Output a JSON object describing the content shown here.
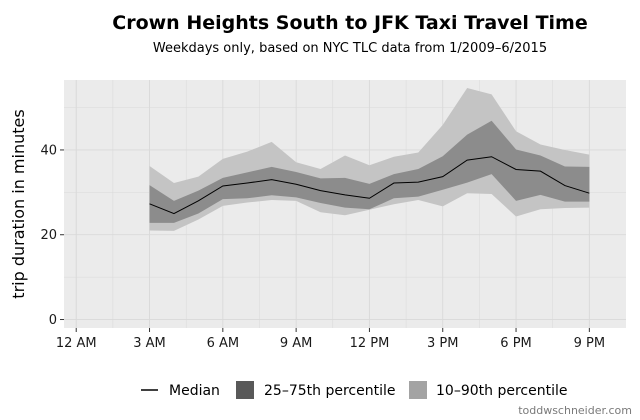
{
  "chart_data": {
    "type": "area",
    "title": "Crown Heights South to JFK Taxi Travel Time",
    "subtitle": "Weekdays only, based on NYC TLC data from 1/2009–6/2015",
    "xlabel": "",
    "ylabel": "trip duration in minutes",
    "x_tick_labels": [
      "12 AM",
      "3 AM",
      "6 AM",
      "9 AM",
      "12 PM",
      "3 PM",
      "6 PM",
      "9 PM"
    ],
    "x_tick_hours": [
      0,
      3,
      6,
      9,
      12,
      15,
      18,
      21
    ],
    "xlim": [
      -0.5,
      22.5
    ],
    "y_ticks": [
      0,
      20,
      40
    ],
    "ylim": [
      -2,
      56.5
    ],
    "grid": true,
    "legend_position": "bottom",
    "x": [
      3,
      4,
      5,
      6,
      7,
      8,
      9,
      10,
      11,
      12,
      13,
      14,
      15,
      16,
      17,
      18,
      19,
      20,
      21
    ],
    "series": [
      {
        "name": "Median",
        "kind": "line",
        "values": [
          27.3,
          25.0,
          28.0,
          31.5,
          32.2,
          33.0,
          31.9,
          30.4,
          29.4,
          28.6,
          32.2,
          32.4,
          33.7,
          37.6,
          38.4,
          35.4,
          35.0,
          31.6,
          29.8
        ]
      },
      {
        "name": "25–75th percentile",
        "kind": "band",
        "lower": [
          22.8,
          22.8,
          25.0,
          28.4,
          28.6,
          29.3,
          28.8,
          27.5,
          26.4,
          26.0,
          28.6,
          29.0,
          30.6,
          32.3,
          34.3,
          28.0,
          29.4,
          27.8,
          27.8
        ],
        "upper": [
          31.7,
          28.0,
          30.4,
          33.4,
          34.7,
          36.0,
          34.8,
          33.3,
          33.4,
          32.0,
          34.3,
          35.5,
          38.5,
          43.6,
          46.9,
          40.1,
          38.7,
          36.1,
          36.0
        ]
      },
      {
        "name": "10–90th percentile",
        "kind": "band",
        "lower": [
          21.0,
          20.9,
          23.6,
          26.8,
          27.6,
          28.2,
          28.0,
          25.3,
          24.6,
          25.9,
          27.2,
          28.2,
          26.7,
          29.8,
          29.6,
          24.3,
          26.0,
          26.3,
          26.4
        ],
        "upper": [
          36.2,
          32.2,
          33.7,
          37.9,
          39.6,
          41.9,
          37.1,
          35.5,
          38.7,
          36.4,
          38.4,
          39.4,
          45.9,
          54.6,
          53.1,
          44.4,
          41.3,
          40.0,
          38.9
        ]
      }
    ],
    "colors": {
      "panel_background": "#ebebeb",
      "grid": "#d9d9d9",
      "band_10_90": "#c4c4c4",
      "band_25_75": "#8c8c8c",
      "legend_band_25_75": "#595959",
      "legend_band_10_90": "#a3a3a3",
      "median_line": "#000000"
    }
  },
  "credit": "toddwschneider.com"
}
